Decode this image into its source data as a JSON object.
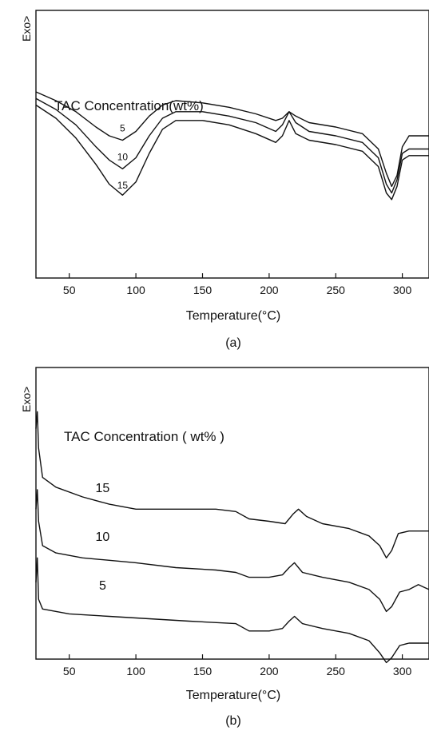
{
  "chart_data": [
    {
      "type": "line",
      "panel_label": "(a)",
      "ylabel": "Exo>",
      "xlabel": "Temperature(°C)",
      "annotation": "TAC Concentration(wt%)",
      "xlim": [
        25,
        320
      ],
      "xticks": [
        50,
        100,
        150,
        200,
        250,
        300
      ],
      "yaxis_ticks": false,
      "grid": false,
      "series": [
        {
          "name": "5",
          "label_at": [
            90,
            0.62
          ],
          "points": [
            [
              25,
              0.8
            ],
            [
              40,
              0.76
            ],
            [
              55,
              0.71
            ],
            [
              70,
              0.64
            ],
            [
              80,
              0.6
            ],
            [
              90,
              0.58
            ],
            [
              100,
              0.62
            ],
            [
              110,
              0.69
            ],
            [
              120,
              0.74
            ],
            [
              130,
              0.76
            ],
            [
              150,
              0.75
            ],
            [
              170,
              0.73
            ],
            [
              190,
              0.7
            ],
            [
              205,
              0.67
            ],
            [
              210,
              0.68
            ],
            [
              215,
              0.71
            ],
            [
              220,
              0.69
            ],
            [
              230,
              0.66
            ],
            [
              250,
              0.64
            ],
            [
              270,
              0.61
            ],
            [
              282,
              0.54
            ],
            [
              288,
              0.43
            ],
            [
              292,
              0.37
            ],
            [
              296,
              0.42
            ],
            [
              300,
              0.55
            ],
            [
              305,
              0.6
            ],
            [
              320,
              0.6
            ]
          ]
        },
        {
          "name": "10",
          "label_at": [
            90,
            0.49
          ],
          "points": [
            [
              25,
              0.77
            ],
            [
              40,
              0.72
            ],
            [
              55,
              0.65
            ],
            [
              70,
              0.55
            ],
            [
              80,
              0.49
            ],
            [
              90,
              0.45
            ],
            [
              100,
              0.5
            ],
            [
              110,
              0.6
            ],
            [
              120,
              0.68
            ],
            [
              130,
              0.71
            ],
            [
              150,
              0.71
            ],
            [
              170,
              0.69
            ],
            [
              190,
              0.66
            ],
            [
              205,
              0.62
            ],
            [
              210,
              0.65
            ],
            [
              215,
              0.71
            ],
            [
              220,
              0.66
            ],
            [
              230,
              0.62
            ],
            [
              250,
              0.6
            ],
            [
              270,
              0.57
            ],
            [
              282,
              0.5
            ],
            [
              288,
              0.38
            ],
            [
              292,
              0.34
            ],
            [
              296,
              0.4
            ],
            [
              300,
              0.52
            ],
            [
              305,
              0.54
            ],
            [
              320,
              0.54
            ]
          ]
        },
        {
          "name": "15",
          "label_at": [
            90,
            0.36
          ],
          "points": [
            [
              25,
              0.74
            ],
            [
              40,
              0.68
            ],
            [
              55,
              0.59
            ],
            [
              70,
              0.47
            ],
            [
              80,
              0.38
            ],
            [
              90,
              0.33
            ],
            [
              100,
              0.39
            ],
            [
              110,
              0.52
            ],
            [
              120,
              0.63
            ],
            [
              130,
              0.67
            ],
            [
              150,
              0.67
            ],
            [
              170,
              0.65
            ],
            [
              190,
              0.61
            ],
            [
              205,
              0.57
            ],
            [
              210,
              0.6
            ],
            [
              215,
              0.67
            ],
            [
              220,
              0.61
            ],
            [
              230,
              0.58
            ],
            [
              250,
              0.56
            ],
            [
              270,
              0.53
            ],
            [
              282,
              0.46
            ],
            [
              288,
              0.34
            ],
            [
              292,
              0.31
            ],
            [
              296,
              0.37
            ],
            [
              300,
              0.49
            ],
            [
              305,
              0.51
            ],
            [
              320,
              0.51
            ]
          ]
        }
      ]
    },
    {
      "type": "line",
      "panel_label": "(b)",
      "ylabel": "Exo>",
      "xlabel": "Temperature(°C)",
      "annotation": "TAC Concentration ( wt% )",
      "xlim": [
        25,
        320
      ],
      "xticks": [
        50,
        100,
        150,
        200,
        250,
        300
      ],
      "yaxis_ticks": false,
      "grid": false,
      "series": [
        {
          "name": "15",
          "label_at": [
            75,
            0.62
          ],
          "points": [
            [
              25,
              0.88
            ],
            [
              26,
              0.95
            ],
            [
              27,
              0.8
            ],
            [
              30,
              0.68
            ],
            [
              40,
              0.64
            ],
            [
              60,
              0.6
            ],
            [
              80,
              0.57
            ],
            [
              100,
              0.55
            ],
            [
              130,
              0.55
            ],
            [
              160,
              0.55
            ],
            [
              175,
              0.54
            ],
            [
              185,
              0.51
            ],
            [
              200,
              0.5
            ],
            [
              212,
              0.49
            ],
            [
              218,
              0.53
            ],
            [
              222,
              0.55
            ],
            [
              228,
              0.52
            ],
            [
              240,
              0.49
            ],
            [
              260,
              0.47
            ],
            [
              275,
              0.44
            ],
            [
              283,
              0.4
            ],
            [
              288,
              0.35
            ],
            [
              292,
              0.38
            ],
            [
              297,
              0.45
            ],
            [
              305,
              0.46
            ],
            [
              320,
              0.46
            ]
          ]
        },
        {
          "name": "10",
          "label_at": [
            75,
            0.42
          ],
          "points": [
            [
              25,
              0.55
            ],
            [
              26,
              0.63
            ],
            [
              27,
              0.5
            ],
            [
              30,
              0.4
            ],
            [
              40,
              0.37
            ],
            [
              60,
              0.35
            ],
            [
              80,
              0.34
            ],
            [
              100,
              0.33
            ],
            [
              130,
              0.31
            ],
            [
              160,
              0.3
            ],
            [
              175,
              0.29
            ],
            [
              185,
              0.27
            ],
            [
              200,
              0.27
            ],
            [
              210,
              0.28
            ],
            [
              215,
              0.31
            ],
            [
              219,
              0.33
            ],
            [
              225,
              0.29
            ],
            [
              240,
              0.27
            ],
            [
              260,
              0.25
            ],
            [
              275,
              0.22
            ],
            [
              283,
              0.18
            ],
            [
              288,
              0.13
            ],
            [
              292,
              0.15
            ],
            [
              298,
              0.21
            ],
            [
              305,
              0.22
            ],
            [
              312,
              0.24
            ],
            [
              316,
              0.23
            ],
            [
              320,
              0.22
            ]
          ]
        },
        {
          "name": "5",
          "label_at": [
            75,
            0.22
          ],
          "points": [
            [
              25,
              0.25
            ],
            [
              26,
              0.35
            ],
            [
              27,
              0.18
            ],
            [
              30,
              0.14
            ],
            [
              50,
              0.12
            ],
            [
              80,
              0.11
            ],
            [
              110,
              0.1
            ],
            [
              140,
              0.09
            ],
            [
              175,
              0.08
            ],
            [
              185,
              0.05
            ],
            [
              200,
              0.05
            ],
            [
              210,
              0.06
            ],
            [
              215,
              0.09
            ],
            [
              219,
              0.11
            ],
            [
              225,
              0.08
            ],
            [
              240,
              0.06
            ],
            [
              260,
              0.04
            ],
            [
              275,
              0.01
            ],
            [
              283,
              -0.04
            ],
            [
              288,
              -0.08
            ],
            [
              292,
              -0.06
            ],
            [
              298,
              -0.01
            ],
            [
              305,
              0.0
            ],
            [
              320,
              0.0
            ]
          ]
        }
      ]
    }
  ]
}
